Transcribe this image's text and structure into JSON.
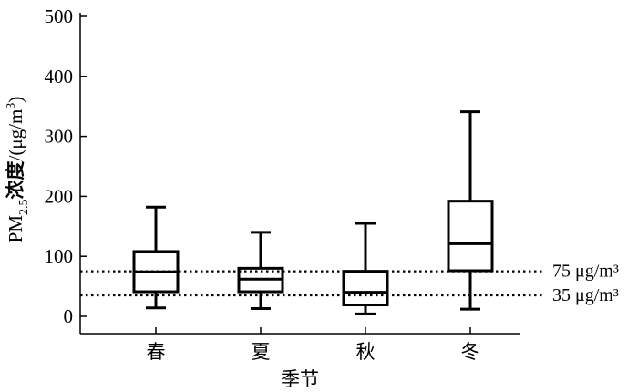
{
  "chart_data": {
    "type": "box",
    "title": "",
    "xlabel": "季节",
    "ylabel": {
      "prefix": "PM",
      "subscript": "2.5",
      "cjk": "浓度",
      "unit_open": "/(μg/m",
      "unit_sup": "3",
      "unit_close": ")"
    },
    "ylim": [
      0,
      500
    ],
    "yticks": [
      "0",
      "100",
      "200",
      "300",
      "400",
      "500"
    ],
    "categories": [
      "春",
      "夏",
      "秋",
      "冬"
    ],
    "boxes": [
      {
        "category": "春",
        "min": 14,
        "q1": 41,
        "median": 74,
        "q3": 108,
        "max": 182
      },
      {
        "category": "夏",
        "min": 13,
        "q1": 41,
        "median": 62,
        "q3": 80,
        "max": 140
      },
      {
        "category": "秋",
        "min": 4,
        "q1": 19,
        "median": 40,
        "q3": 75,
        "max": 155
      },
      {
        "category": "冬",
        "min": 12,
        "q1": 76,
        "median": 121,
        "q3": 192,
        "max": 341
      }
    ],
    "reference_lines": [
      {
        "value": 75,
        "label": "75 μg/m³"
      },
      {
        "value": 35,
        "label": "35 μg/m³"
      }
    ],
    "grid": false,
    "legend": "none"
  }
}
